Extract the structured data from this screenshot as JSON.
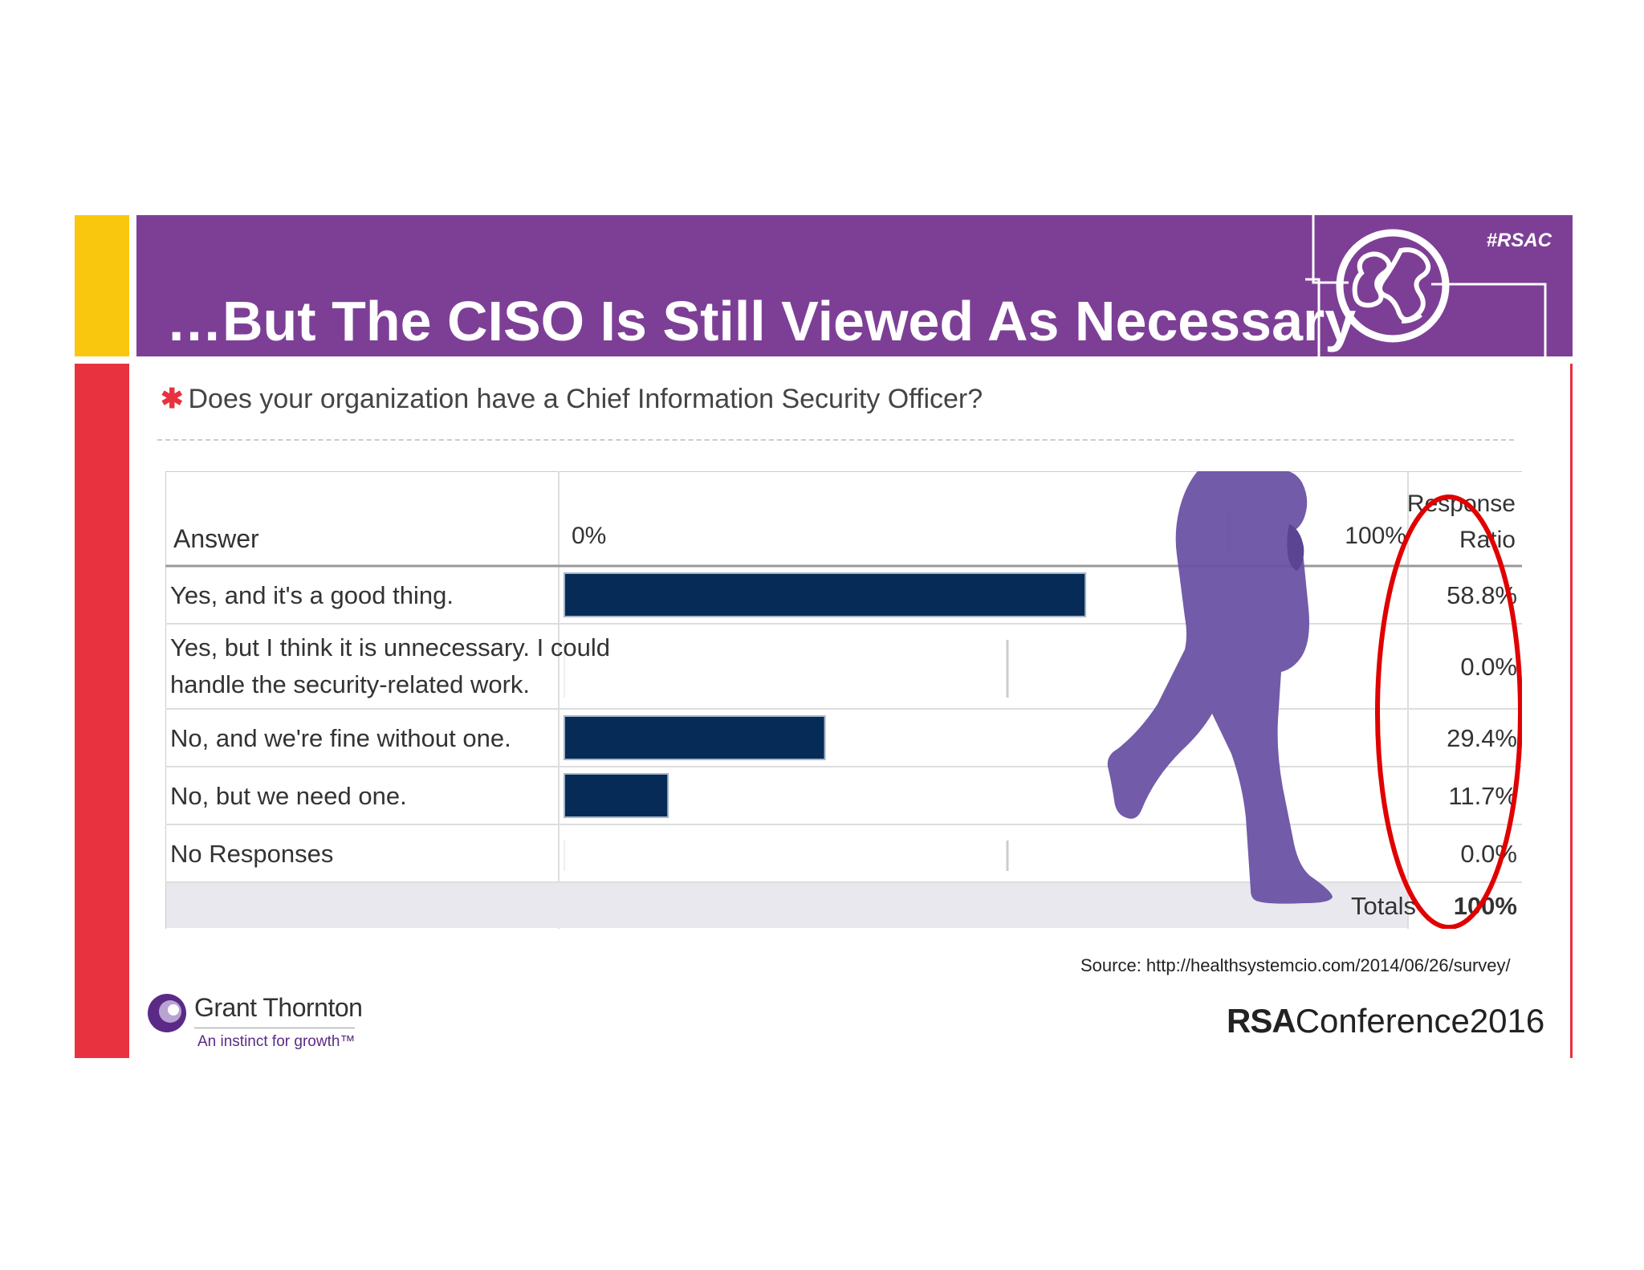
{
  "slide": {
    "title": "…But The CISO Is Still Viewed As Necessary",
    "hashtag": "#RSAC",
    "question": "Does your organization have a Chief Information Security Officer?",
    "source": "Source: http://healthsystemcio.com/2014/06/26/survey/",
    "logos": {
      "grant_thornton_name": "Grant Thornton",
      "grant_thornton_tagline": "An instinct for growth™",
      "rsa_mark": "RSA",
      "rsa_conference": "Conference2016"
    },
    "colors": {
      "header": "#7d3f96",
      "accent_red": "#e8323f",
      "accent_yellow": "#f9c80e",
      "bar": "#062b57",
      "silhouette": "#6a52a3",
      "highlight_ring": "#e00000"
    }
  },
  "chart_data": {
    "type": "bar",
    "orientation": "horizontal",
    "column_headers": {
      "answer": "Answer",
      "axis_min_label": "0%",
      "axis_max_label": "100%",
      "ratio_line1": "Response",
      "ratio_line2": "Ratio"
    },
    "categories": [
      "Yes, and it's a good thing.",
      "Yes, but I think it is unnecessary. I could handle the security-related work.",
      "No, and we're fine without one.",
      "No, but we need one.",
      "No Responses"
    ],
    "category_lines": [
      [
        "Yes, and it's a good thing."
      ],
      [
        "Yes, but I think it is unnecessary. I could",
        "handle the security-related work."
      ],
      [
        "No, and we're fine without one."
      ],
      [
        "No, but we need one."
      ],
      [
        "No Responses"
      ]
    ],
    "values": [
      58.8,
      0.0,
      29.4,
      11.7,
      0.0
    ],
    "value_labels": [
      "58.8%",
      "0.0%",
      "29.4%",
      "11.7%",
      "0.0%"
    ],
    "xlim": [
      0,
      100
    ],
    "totals_label": "Totals",
    "totals_value": "100%",
    "annotation": "highlight ellipse around Response Ratio column"
  }
}
